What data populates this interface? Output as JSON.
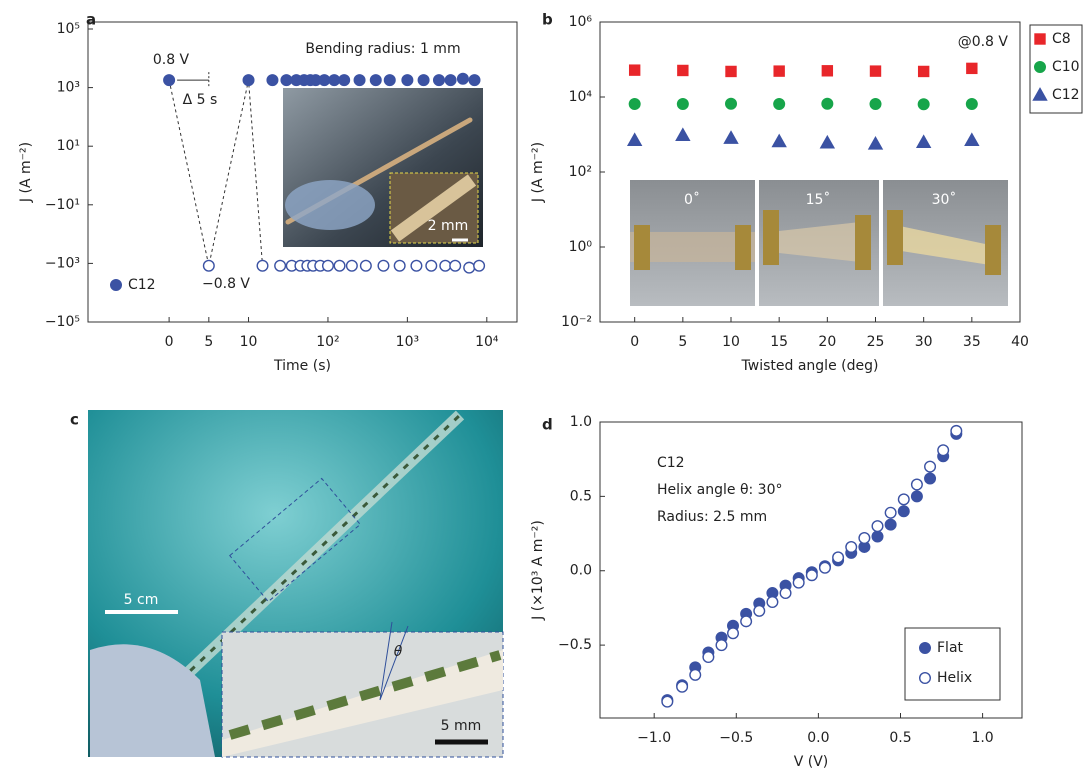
{
  "chart_data": [
    {
      "type": "scatter",
      "panel": "a",
      "xlabel": "Time (s)",
      "ylabel": "J (A m⁻²)",
      "xscale": "symlog",
      "yscale": "symlog",
      "xlim": [
        -10.5,
        24000
      ],
      "ylim": [
        -100000,
        100000
      ],
      "xticks": [
        0,
        5,
        10,
        {
          "value": 100,
          "label": "10²"
        },
        {
          "value": 1000,
          "label": "10³"
        },
        {
          "value": 10000,
          "label": "10⁴"
        }
      ],
      "yticks": [
        {
          "value": 100000,
          "label": "10⁵"
        },
        {
          "value": 1000,
          "label": "10³"
        },
        {
          "value": 10,
          "label": "10¹"
        },
        {
          "value": -10,
          "label": "−10¹"
        },
        {
          "value": -1000,
          "label": "−10³"
        },
        {
          "value": -100000,
          "label": "−10⁵"
        }
      ],
      "x": [
        0,
        5,
        10,
        15,
        20,
        25,
        30,
        35,
        40,
        45,
        50,
        55,
        60,
        65,
        70,
        80,
        90,
        100,
        120,
        140,
        160,
        200,
        250,
        300,
        400,
        500,
        600,
        800,
        1000,
        1300,
        1600,
        2000,
        2500,
        3000,
        3500,
        4000,
        5000,
        6000,
        7000,
        8000
      ],
      "series": [
        {
          "name": "C12",
          "color": "#3b52a3",
          "marker": "circle",
          "values": [
            1800,
            -1200,
            1800,
            -1200,
            1800,
            -1200,
            1800,
            -1200,
            1800,
            -1200,
            1800,
            -1200,
            1800,
            -1200,
            1800,
            -1200,
            1800,
            -1200,
            1800,
            -1200,
            1800,
            -1200,
            1800,
            -1200,
            1800,
            -1200,
            1800,
            -1200,
            1800,
            -1200,
            1800,
            -1200,
            1800,
            -1200,
            1800,
            -1200,
            2000,
            -1400,
            1800,
            -1200
          ]
        }
      ],
      "legend": "lower-left",
      "annotations": [
        "0.8 V",
        "Δ 5 s",
        "−0.8 V",
        "Bending radius: 1 mm",
        "2 mm"
      ]
    },
    {
      "type": "scatter",
      "panel": "b",
      "xlabel": "Twisted angle (deg)",
      "ylabel": "J (A m⁻²)",
      "xscale": "linear",
      "yscale": "log",
      "xlim": [
        -3.6,
        40
      ],
      "ylim": [
        0.01,
        1000000
      ],
      "xticks": [
        0,
        5,
        10,
        15,
        20,
        25,
        30,
        35,
        40
      ],
      "yticks": [
        {
          "value": 0.01,
          "label": "10⁻²"
        },
        {
          "value": 1,
          "label": "10⁰"
        },
        {
          "value": 100,
          "label": "10²"
        },
        {
          "value": 10000,
          "label": "10⁴"
        },
        {
          "value": 1000000,
          "label": "10⁶"
        }
      ],
      "x": [
        0,
        5,
        10,
        15,
        20,
        25,
        30,
        35
      ],
      "series": [
        {
          "name": "C8",
          "color": "#e8262a",
          "marker": "square",
          "values": [
            52000,
            51000,
            48000,
            49000,
            50000,
            49000,
            48000,
            58000
          ]
        },
        {
          "name": "C10",
          "color": "#17a54a",
          "marker": "circle",
          "values": [
            6500,
            6500,
            6600,
            6500,
            6600,
            6500,
            6400,
            6500
          ]
        },
        {
          "name": "C12",
          "color": "#3b52a3",
          "marker": "triangle",
          "values": [
            700,
            950,
            800,
            650,
            600,
            560,
            620,
            700
          ]
        }
      ],
      "legend": "outside-right",
      "annotations": [
        "@0.8 V",
        "0˚",
        "15˚",
        "30˚"
      ]
    },
    {
      "type": "scatter",
      "panel": "d",
      "xlabel": "V (V)",
      "ylabel": "J (×10³ A m⁻²)",
      "xscale": "linear",
      "yscale": "linear",
      "xlim": [
        -1.33,
        1.24
      ],
      "ylim": [
        -0.99,
        1.0
      ],
      "xticks": [
        {
          "value": -1,
          "label": "−1.0"
        },
        {
          "value": -0.5,
          "label": "−0.5"
        },
        {
          "value": 0,
          "label": "0.0"
        },
        {
          "value": 0.5,
          "label": "0.5"
        },
        {
          "value": 1,
          "label": "1.0"
        }
      ],
      "yticks": [
        {
          "value": -0.5,
          "label": "−0.5"
        },
        {
          "value": 0,
          "label": "0.0"
        },
        0.5,
        {
          "value": 1,
          "label": "1.0"
        }
      ],
      "x": [
        -0.92,
        -0.83,
        -0.75,
        -0.67,
        -0.59,
        -0.52,
        -0.44,
        -0.36,
        -0.28,
        -0.2,
        -0.12,
        -0.04,
        0.04,
        0.12,
        0.2,
        0.28,
        0.36,
        0.44,
        0.52,
        0.6,
        0.68,
        0.76,
        0.84
      ],
      "series": [
        {
          "name": "Flat",
          "color": "#3b52a3",
          "marker": "circle",
          "values": [
            -0.87,
            -0.77,
            -0.65,
            -0.55,
            -0.45,
            -0.37,
            -0.29,
            -0.22,
            -0.15,
            -0.1,
            -0.05,
            -0.01,
            0.03,
            0.07,
            0.12,
            0.16,
            0.23,
            0.31,
            0.4,
            0.5,
            0.62,
            0.77,
            0.92
          ]
        },
        {
          "name": "Helix",
          "color": "#3b52a3",
          "marker": "open-circle",
          "values": [
            -0.88,
            -0.78,
            -0.7,
            -0.58,
            -0.5,
            -0.42,
            -0.34,
            -0.27,
            -0.21,
            -0.15,
            -0.08,
            -0.03,
            0.02,
            0.09,
            0.16,
            0.22,
            0.3,
            0.39,
            0.48,
            0.58,
            0.7,
            0.81,
            0.94
          ]
        }
      ],
      "legend": "lower-right",
      "annotations": [
        "C12",
        "Helix angle θ: 30°",
        "Radius: 2.5 mm"
      ]
    }
  ],
  "photo": {
    "panel": "c",
    "scale_bar": "5 cm",
    "inset_scale_bar": "5 mm",
    "angle_label": "θ"
  }
}
